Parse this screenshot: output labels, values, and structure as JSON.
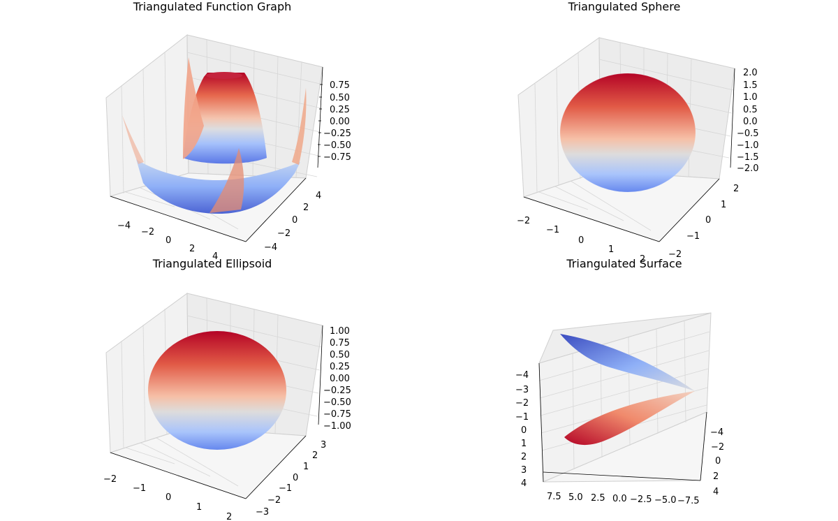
{
  "colormap": {
    "name": "coolwarm",
    "stops": [
      "#3b4cc0",
      "#7396f5",
      "#b0cbfc",
      "#dddcdc",
      "#f6b294",
      "#e6684d",
      "#b40426"
    ]
  },
  "chart_data": [
    {
      "type": "surface",
      "title": "Triangulated Function Graph",
      "xlim": [
        -5,
        5
      ],
      "ylim": [
        -5,
        5
      ],
      "zlim": [
        -0.9,
        0.9
      ],
      "x_ticks": [
        "−4",
        "−2",
        "0",
        "2",
        "4"
      ],
      "y_ticks": [
        "−4",
        "−2",
        "0",
        "2",
        "4"
      ],
      "z_ticks": [
        "0.75",
        "0.50",
        "0.25",
        "0.00",
        "−0.25",
        "−0.50",
        "−0.75"
      ],
      "grid": true
    },
    {
      "type": "surface",
      "title": "Triangulated Sphere",
      "xlim": [
        -2,
        2
      ],
      "ylim": [
        -2,
        2
      ],
      "zlim": [
        -2,
        2
      ],
      "x_ticks": [
        "−2",
        "−1",
        "0",
        "1",
        "2"
      ],
      "y_ticks": [
        "−2",
        "−1",
        "0",
        "1",
        "2"
      ],
      "z_ticks": [
        "2.0",
        "1.5",
        "1.0",
        "0.5",
        "0.0",
        "−0.5",
        "−1.0",
        "−1.5",
        "−2.0"
      ],
      "grid": true
    },
    {
      "type": "surface",
      "title": "Triangulated Ellipsoid",
      "xlim": [
        -2,
        2
      ],
      "ylim": [
        -3,
        3
      ],
      "zlim": [
        -1,
        1
      ],
      "x_ticks": [
        "−2",
        "−1",
        "0",
        "1",
        "2"
      ],
      "y_ticks": [
        "−3",
        "−2",
        "−1",
        "0",
        "1",
        "2",
        "3"
      ],
      "z_ticks": [
        "1.00",
        "0.75",
        "0.50",
        "0.25",
        "0.00",
        "−0.25",
        "−0.50",
        "−0.75",
        "−1.00"
      ],
      "grid": true
    },
    {
      "type": "surface",
      "title": "Triangulated Surface",
      "xlim": [
        -8,
        8
      ],
      "ylim": [
        -4,
        4
      ],
      "zlim": [
        -4,
        4
      ],
      "x_ticks": [
        "7.5",
        "5.0",
        "2.5",
        "0.0",
        "−2.5",
        "−5.0",
        "−7.5"
      ],
      "y_ticks": [
        "−4",
        "−2",
        "0",
        "2",
        "4"
      ],
      "z_ticks": [
        "−4",
        "−3",
        "−2",
        "−1",
        "0",
        "1",
        "2",
        "3",
        "4"
      ],
      "grid": true
    }
  ]
}
